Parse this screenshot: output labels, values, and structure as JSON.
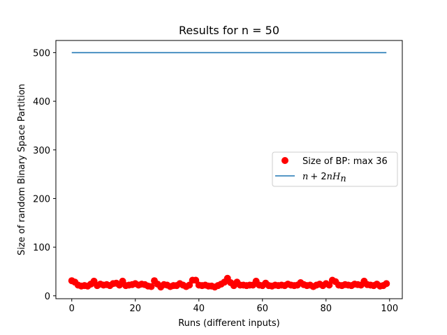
{
  "chart_data": {
    "type": "scatter",
    "title": "Results for n = 50",
    "xlabel": "Runs (different inputs)",
    "ylabel": "Size of random Binary Space Partition",
    "xlim": [
      -5,
      104
    ],
    "ylim": [
      -6,
      525
    ],
    "xticks": [
      0,
      20,
      40,
      60,
      80,
      100
    ],
    "yticks": [
      0,
      100,
      200,
      300,
      400,
      500
    ],
    "legend_position": "center-right",
    "series": [
      {
        "name": "Size of BP: max 36",
        "kind": "scatter",
        "color": "#ff0000",
        "x": [
          0,
          1,
          2,
          3,
          4,
          5,
          6,
          7,
          8,
          9,
          10,
          11,
          12,
          13,
          14,
          15,
          16,
          17,
          18,
          19,
          20,
          21,
          22,
          23,
          24,
          25,
          26,
          27,
          28,
          29,
          30,
          31,
          32,
          33,
          34,
          35,
          36,
          37,
          38,
          39,
          40,
          41,
          42,
          43,
          44,
          45,
          46,
          47,
          48,
          49,
          50,
          51,
          52,
          53,
          54,
          55,
          56,
          57,
          58,
          59,
          60,
          61,
          62,
          63,
          64,
          65,
          66,
          67,
          68,
          69,
          70,
          71,
          72,
          73,
          74,
          75,
          76,
          77,
          78,
          79,
          80,
          81,
          82,
          83,
          84,
          85,
          86,
          87,
          88,
          89,
          90,
          91,
          92,
          93,
          94,
          95,
          96,
          97,
          98,
          99
        ],
        "values": [
          31,
          28,
          22,
          20,
          21,
          20,
          24,
          30,
          21,
          24,
          22,
          23,
          21,
          25,
          26,
          22,
          30,
          21,
          22,
          23,
          25,
          22,
          24,
          23,
          20,
          19,
          31,
          24,
          18,
          23,
          22,
          19,
          21,
          21,
          25,
          22,
          19,
          22,
          32,
          32,
          22,
          21,
          22,
          20,
          20,
          18,
          21,
          24,
          28,
          36,
          27,
          21,
          28,
          22,
          22,
          21,
          22,
          22,
          30,
          22,
          21,
          26,
          21,
          20,
          22,
          21,
          22,
          21,
          24,
          22,
          21,
          22,
          27,
          23,
          21,
          22,
          19,
          22,
          24,
          21,
          25,
          22,
          32,
          29,
          22,
          21,
          23,
          22,
          21,
          24,
          23,
          22,
          30,
          23,
          22,
          21,
          24,
          20,
          21,
          25
        ]
      },
      {
        "name": "n + 2nH_n",
        "kind": "line",
        "color": "#1f77b4",
        "x": [
          0,
          99
        ],
        "values": [
          500,
          500
        ]
      }
    ]
  },
  "legend": {
    "entry_1": "Size of BP: max 36",
    "entry_2_n": "n",
    "entry_2_plus": "+ 2",
    "entry_2_nH": "nH",
    "entry_2_sub": "n"
  }
}
